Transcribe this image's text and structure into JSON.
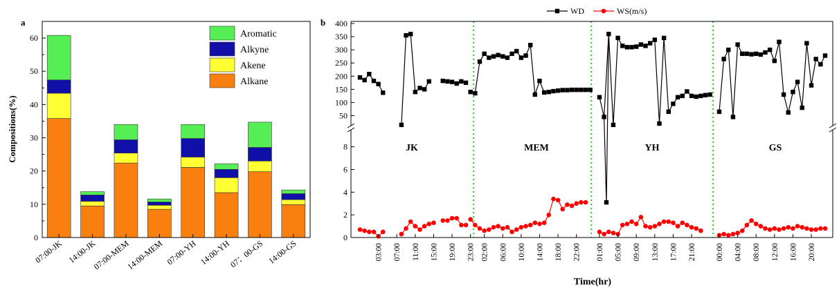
{
  "chart_data": [
    {
      "panel_label": "a",
      "type": "bar",
      "stacked": true,
      "ylabel": "Compositions(%)",
      "xlabel": "",
      "ylim": [
        0,
        65
      ],
      "yticks": [
        0,
        10,
        20,
        30,
        40,
        50,
        60
      ],
      "grid": false,
      "legend_position": "top-right",
      "categories": [
        "07:00-JK",
        "14:00-JK",
        "07:00-MEM",
        "14:00-MEM",
        "07:00-YH",
        "14:00-YH",
        "07：00-GS",
        "14:00-GS"
      ],
      "series": [
        {
          "name": "Alkane",
          "color": "#F97F0F",
          "values": [
            35.8,
            9.5,
            22.4,
            8.5,
            21.1,
            13.5,
            19.8,
            9.9
          ]
        },
        {
          "name": "Akene",
          "color": "#FFFF33",
          "values": [
            7.6,
            1.4,
            3.0,
            1.2,
            3.1,
            4.5,
            3.2,
            1.5
          ]
        },
        {
          "name": "Alkyne",
          "color": "#1010A8",
          "values": [
            4.0,
            1.9,
            4.0,
            1.0,
            5.6,
            2.5,
            4.1,
            1.8
          ]
        },
        {
          "name": "Aromatic",
          "color": "#55EE55",
          "values": [
            13.4,
            1.0,
            4.6,
            0.9,
            4.2,
            1.7,
            7.6,
            1.1
          ]
        }
      ]
    },
    {
      "panel_label": "b",
      "type": "line",
      "xlabel": "Time(hr)",
      "x_tick_labels": [
        "03:00",
        "07:00",
        "11:00",
        "15:00",
        "19:00",
        "23:00",
        "02:00",
        "06:00",
        "10:00",
        "14:00",
        "18:00",
        "22:00",
        "01:00",
        "05:00",
        "09:00",
        "13:00",
        "17:00",
        "21:00",
        "00:00",
        "04:00",
        "08:00",
        "12:00",
        "16:00",
        "20:00"
      ],
      "site_labels": [
        "JK",
        "MEM",
        "YH",
        "GS"
      ],
      "axes": [
        {
          "name": "upper",
          "range": [
            0,
            400
          ],
          "ticks": [
            50,
            100,
            150,
            200,
            250,
            300,
            350,
            400
          ]
        },
        {
          "name": "lower",
          "range": [
            0,
            10
          ],
          "ticks": [
            0,
            2,
            4,
            6,
            8
          ]
        }
      ],
      "series": [
        {
          "name": "WD",
          "color": "#000000",
          "marker": "square",
          "axis": "upper",
          "segments": [
            [
              [
                0,
                195
              ],
              [
                1,
                185
              ],
              [
                2,
                208
              ],
              [
                3,
                182
              ],
              [
                4,
                170
              ],
              [
                5,
                137
              ]
            ],
            [
              [
                9,
                15
              ],
              [
                10,
                355
              ],
              [
                11,
                360
              ],
              [
                12,
                140
              ],
              [
                13,
                155
              ],
              [
                14,
                150
              ],
              [
                15,
                180
              ]
            ],
            [
              [
                18,
                182
              ],
              [
                19,
                180
              ],
              [
                20,
                178
              ],
              [
                21,
                172
              ],
              [
                22,
                180
              ],
              [
                23,
                175
              ]
            ],
            [
              [
                24,
                140
              ],
              [
                25,
                135
              ],
              [
                26,
                255
              ],
              [
                27,
                285
              ],
              [
                28,
                270
              ],
              [
                29,
                275
              ],
              [
                30,
                280
              ],
              [
                31,
                275
              ],
              [
                32,
                270
              ],
              [
                33,
                285
              ],
              [
                34,
                295
              ],
              [
                35,
                270
              ],
              [
                36,
                278
              ],
              [
                37,
                318
              ],
              [
                38,
                130
              ],
              [
                39,
                182
              ],
              [
                40,
                138
              ],
              [
                41,
                140
              ],
              [
                42,
                143
              ],
              [
                43,
                145
              ],
              [
                44,
                147
              ],
              [
                45,
                147
              ],
              [
                46,
                148
              ],
              [
                47,
                148
              ],
              [
                48,
                148
              ],
              [
                49,
                148
              ],
              [
                50,
                148
              ]
            ],
            [
              [
                52,
                120
              ],
              [
                53,
                45
              ],
              [
                54,
                360
              ],
              [
                55,
                15
              ],
              [
                56,
                345
              ],
              [
                57,
                315
              ],
              [
                58,
                310
              ],
              [
                59,
                310
              ],
              [
                60,
                312
              ],
              [
                61,
                320
              ],
              [
                62,
                315
              ],
              [
                63,
                325
              ],
              [
                64,
                338
              ],
              [
                65,
                20
              ],
              [
                66,
                345
              ],
              [
                67,
                65
              ],
              [
                68,
                95
              ],
              [
                69,
                120
              ],
              [
                70,
                125
              ],
              [
                71,
                142
              ],
              [
                72,
                125
              ],
              [
                73,
                122
              ],
              [
                74,
                125
              ],
              [
                75,
                128
              ],
              [
                76,
                130
              ]
            ],
            [
              [
                78,
                65
              ],
              [
                79,
                265
              ],
              [
                80,
                300
              ],
              [
                81,
                45
              ],
              [
                82,
                320
              ],
              [
                83,
                285
              ],
              [
                84,
                285
              ],
              [
                85,
                283
              ],
              [
                86,
                285
              ],
              [
                87,
                282
              ],
              [
                88,
                290
              ],
              [
                89,
                300
              ],
              [
                90,
                258
              ],
              [
                91,
                330
              ],
              [
                92,
                130
              ],
              [
                93,
                62
              ],
              [
                94,
                140
              ],
              [
                95,
                178
              ],
              [
                96,
                80
              ],
              [
                97,
                325
              ],
              [
                98,
                165
              ],
              [
                99,
                265
              ],
              [
                100,
                245
              ],
              [
                101,
                278
              ]
            ]
          ],
          "break_drop": {
            "x": 53.5,
            "value": 3.1
          }
        },
        {
          "name": "WS(m/s)",
          "color": "#FF0000",
          "marker": "circle",
          "axis": "lower",
          "segments": [
            [
              [
                0,
                0.7
              ],
              [
                1,
                0.6
              ],
              [
                2,
                0.5
              ],
              [
                3,
                0.5
              ],
              [
                4,
                0.1
              ],
              [
                5,
                0.5
              ]
            ],
            [
              [
                9,
                0.3
              ],
              [
                10,
                0.8
              ],
              [
                11,
                1.4
              ],
              [
                12,
                1.0
              ],
              [
                13,
                0.7
              ],
              [
                14,
                1.0
              ],
              [
                15,
                1.2
              ],
              [
                16,
                1.3
              ]
            ],
            [
              [
                18,
                1.5
              ],
              [
                19,
                1.5
              ],
              [
                20,
                1.7
              ],
              [
                21,
                1.7
              ],
              [
                22,
                1.1
              ],
              [
                23,
                1.1
              ]
            ],
            [
              [
                24,
                1.6
              ],
              [
                25,
                1.1
              ],
              [
                26,
                0.8
              ],
              [
                27,
                0.6
              ],
              [
                28,
                0.7
              ],
              [
                29,
                0.9
              ],
              [
                30,
                1.0
              ],
              [
                31,
                0.8
              ],
              [
                32,
                0.9
              ],
              [
                33,
                0.5
              ],
              [
                34,
                0.7
              ],
              [
                35,
                0.9
              ],
              [
                36,
                1.0
              ],
              [
                37,
                1.1
              ],
              [
                38,
                1.3
              ],
              [
                39,
                1.2
              ],
              [
                40,
                1.3
              ],
              [
                41,
                2.0
              ],
              [
                42,
                3.4
              ],
              [
                43,
                3.3
              ],
              [
                44,
                2.5
              ],
              [
                45,
                2.9
              ],
              [
                46,
                2.8
              ],
              [
                47,
                3.0
              ],
              [
                48,
                3.1
              ],
              [
                49,
                3.1
              ]
            ],
            [
              [
                52,
                0.5
              ],
              [
                53,
                0.3
              ],
              [
                54,
                0.5
              ],
              [
                55,
                0.4
              ],
              [
                56,
                0.3
              ],
              [
                57,
                1.1
              ],
              [
                58,
                1.2
              ],
              [
                59,
                1.4
              ],
              [
                60,
                1.2
              ],
              [
                61,
                1.8
              ],
              [
                62,
                1.0
              ],
              [
                63,
                0.9
              ],
              [
                64,
                1.0
              ],
              [
                65,
                1.2
              ],
              [
                66,
                1.4
              ],
              [
                67,
                1.4
              ],
              [
                68,
                1.3
              ],
              [
                69,
                1.0
              ],
              [
                70,
                1.3
              ],
              [
                71,
                1.1
              ],
              [
                72,
                0.9
              ],
              [
                73,
                0.8
              ],
              [
                74,
                0.6
              ]
            ],
            [
              [
                78,
                0.2
              ],
              [
                79,
                0.3
              ],
              [
                80,
                0.2
              ],
              [
                81,
                0.3
              ],
              [
                82,
                0.4
              ],
              [
                83,
                0.6
              ],
              [
                84,
                1.1
              ],
              [
                85,
                1.5
              ],
              [
                86,
                1.2
              ],
              [
                87,
                1.0
              ],
              [
                88,
                0.8
              ],
              [
                89,
                0.7
              ],
              [
                90,
                0.8
              ],
              [
                91,
                0.7
              ],
              [
                92,
                0.8
              ],
              [
                93,
                0.9
              ],
              [
                94,
                0.8
              ],
              [
                95,
                1.0
              ],
              [
                96,
                0.9
              ],
              [
                97,
                0.8
              ],
              [
                98,
                0.7
              ],
              [
                99,
                0.7
              ],
              [
                100,
                0.8
              ],
              [
                101,
                0.8
              ]
            ]
          ]
        }
      ],
      "site_dividers_color": "#22DD22",
      "legend_position": "top-center",
      "grid": false
    }
  ]
}
